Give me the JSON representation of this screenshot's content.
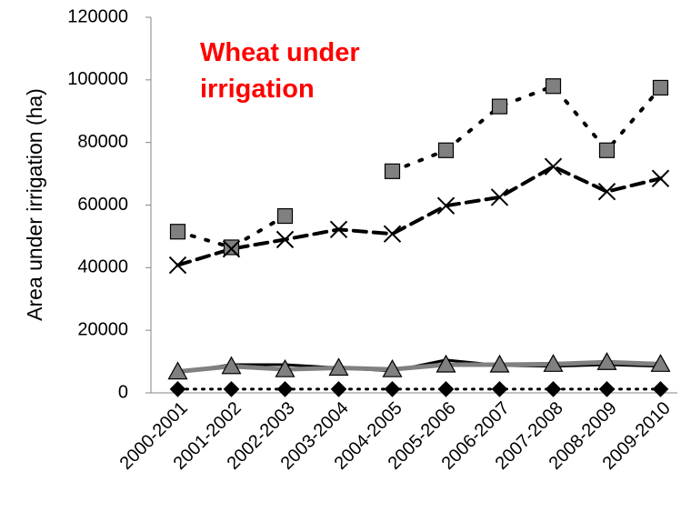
{
  "chart_data": {
    "type": "line",
    "title": "Wheat under irrigation",
    "title_color": "#ff0000",
    "y_label": "Area under irrigation (ha)",
    "categories": [
      "2000-2001",
      "2001-2002",
      "2002-2003",
      "2003-2004",
      "2004-2005",
      "2005-2006",
      "2006-2007",
      "2007-2008",
      "2008-2009",
      "2009-2010"
    ],
    "series": [
      {
        "color": "#000000",
        "marker": "none",
        "marker_color": "#000000",
        "dash": "none",
        "width": 3,
        "values": [
          6500,
          9000,
          9000,
          8000,
          7000,
          10500,
          8800,
          8500,
          9000,
          8500
        ]
      },
      {
        "color": "#808080",
        "marker": "triangle",
        "marker_color": "#808080",
        "dash": "none",
        "width": 5,
        "values": [
          6800,
          8500,
          7500,
          8000,
          7500,
          9000,
          9000,
          9200,
          9800,
          9200
        ]
      },
      {
        "color": "#000000",
        "marker": "square",
        "marker_color": "#808080",
        "dash": "3,13",
        "width": 4,
        "values": [
          51500,
          46500,
          56500,
          null,
          70800,
          77500,
          91500,
          98000,
          77500,
          97500
        ]
      },
      {
        "color": "#000000",
        "marker": "x",
        "marker_color": "#000000",
        "dash": "14,8",
        "width": 4,
        "values": [
          40800,
          46000,
          49000,
          52200,
          50800,
          59800,
          62500,
          72300,
          64300,
          68500
        ]
      },
      {
        "color": "#000000",
        "marker": "diamond",
        "marker_color": "#000000",
        "dash": "2,7",
        "width": 3,
        "values": [
          1200,
          1200,
          1200,
          1200,
          1200,
          1200,
          1200,
          1200,
          1200,
          1200
        ]
      }
    ],
    "ylim": [
      0,
      120000
    ],
    "yticks": [
      0,
      20000,
      40000,
      60000,
      80000,
      100000,
      120000
    ],
    "grid": false
  }
}
